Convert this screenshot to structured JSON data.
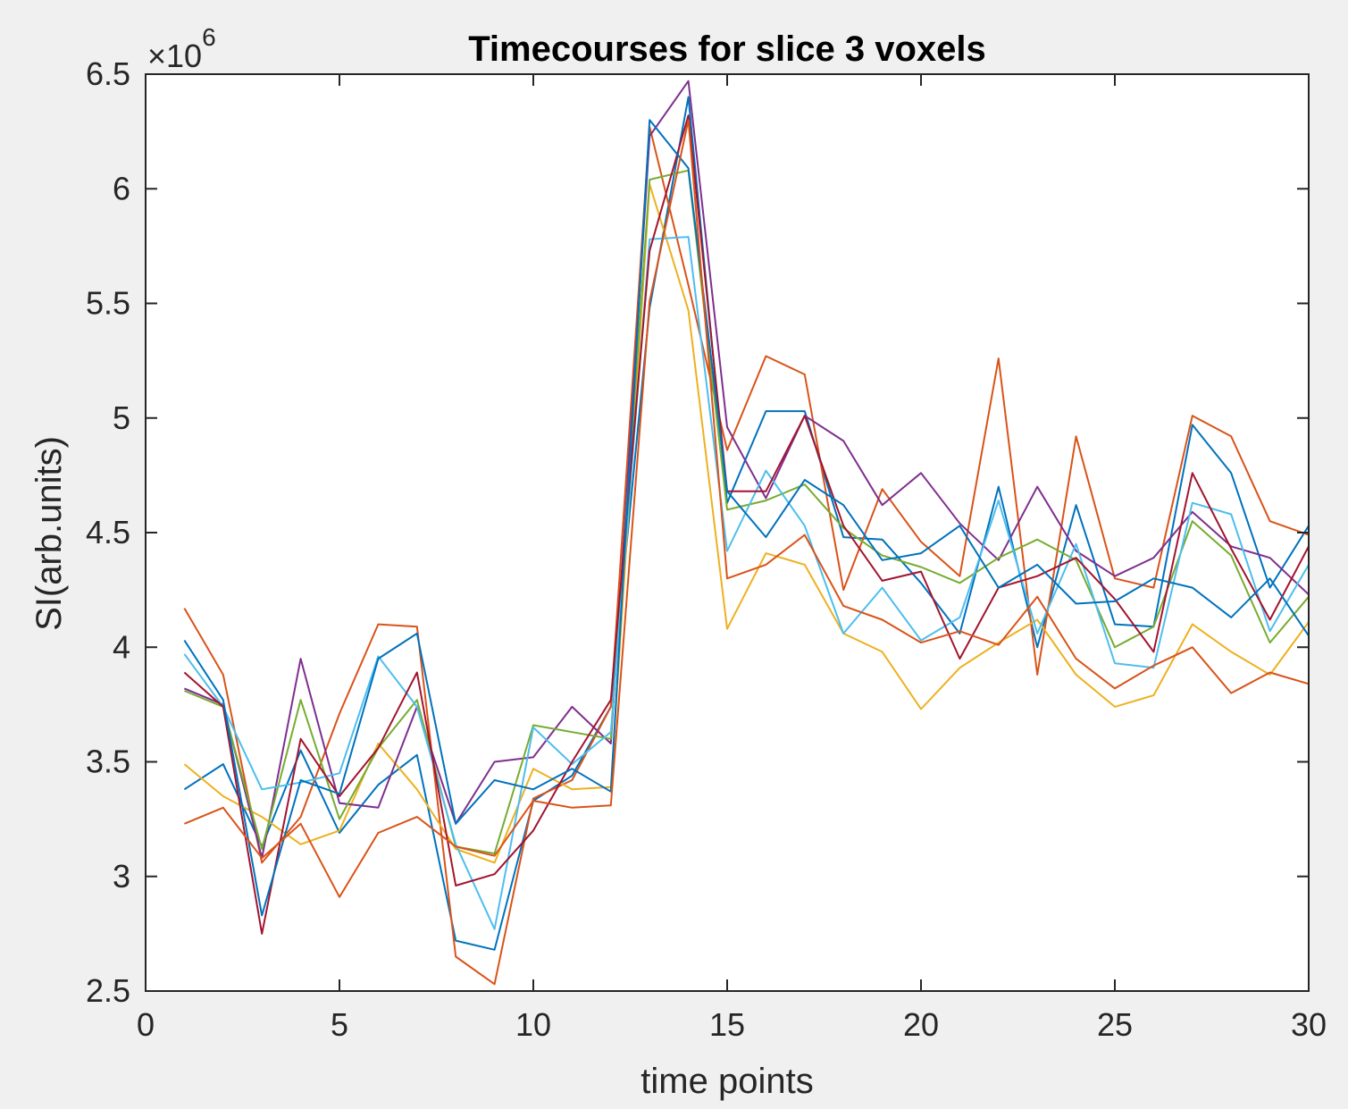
{
  "chart_data": {
    "type": "line",
    "title": "Timecourses for slice 3 voxels",
    "xlabel": "time points",
    "ylabel": "SI(arb.units)",
    "y_exponent_label": "×10",
    "y_exponent_power": "6",
    "xlim": [
      0,
      30
    ],
    "ylim": [
      2.5,
      6.5
    ],
    "xticks": [
      0,
      5,
      10,
      15,
      20,
      25,
      30
    ],
    "yticks": [
      2.5,
      3,
      3.5,
      4,
      4.5,
      5,
      5.5,
      6,
      6.5
    ],
    "grid": false,
    "x": [
      1,
      2,
      3,
      4,
      5,
      6,
      7,
      8,
      9,
      10,
      11,
      12,
      13,
      14,
      15,
      16,
      17,
      18,
      19,
      20,
      21,
      22,
      23,
      24,
      25,
      26,
      27,
      28,
      29,
      30
    ],
    "series": [
      {
        "color": "#0072BD",
        "values": [
          3.38,
          3.49,
          3.13,
          3.55,
          3.19,
          3.4,
          3.53,
          2.72,
          2.68,
          3.33,
          3.44,
          3.74,
          5.48,
          6.4,
          4.63,
          5.03,
          5.03,
          4.48,
          4.47,
          4.28,
          4.06,
          4.7,
          4.0,
          4.62,
          4.1,
          4.09,
          4.97,
          4.76,
          4.26,
          4.53
        ]
      },
      {
        "color": "#D95319",
        "values": [
          4.17,
          3.88,
          3.06,
          3.26,
          3.71,
          4.1,
          4.09,
          2.65,
          2.53,
          3.34,
          3.42,
          3.74,
          6.27,
          5.58,
          4.86,
          5.27,
          5.19,
          4.25,
          4.69,
          4.46,
          4.31,
          5.26,
          3.88,
          4.92,
          4.3,
          4.26,
          5.01,
          4.92,
          4.55,
          4.49
        ]
      },
      {
        "color": "#EDB120",
        "values": [
          3.49,
          3.35,
          3.26,
          3.14,
          3.2,
          3.58,
          3.38,
          3.12,
          3.06,
          3.47,
          3.38,
          3.39,
          6.02,
          5.47,
          4.08,
          4.41,
          4.36,
          4.06,
          3.98,
          3.73,
          3.91,
          4.02,
          4.12,
          3.88,
          3.74,
          3.79,
          4.1,
          3.98,
          3.88,
          4.11
        ]
      },
      {
        "color": "#7E2F8E",
        "values": [
          3.82,
          3.75,
          3.08,
          3.95,
          3.32,
          3.3,
          3.74,
          3.23,
          3.5,
          3.52,
          3.74,
          3.58,
          6.23,
          6.47,
          4.96,
          4.65,
          5.01,
          4.9,
          4.62,
          4.76,
          4.54,
          4.38,
          4.7,
          4.42,
          4.31,
          4.39,
          4.59,
          4.44,
          4.39,
          4.23
        ]
      },
      {
        "color": "#77AC30",
        "values": [
          3.81,
          3.74,
          3.12,
          3.77,
          3.25,
          3.56,
          3.77,
          3.13,
          3.1,
          3.66,
          3.63,
          3.6,
          6.04,
          6.08,
          4.6,
          4.64,
          4.71,
          4.52,
          4.4,
          4.35,
          4.28,
          4.39,
          4.47,
          4.38,
          4.0,
          4.09,
          4.55,
          4.4,
          4.02,
          4.22
        ]
      },
      {
        "color": "#4DBEEE",
        "values": [
          3.97,
          3.74,
          3.38,
          3.41,
          3.45,
          3.96,
          3.74,
          3.14,
          2.77,
          3.65,
          3.49,
          3.63,
          5.78,
          5.79,
          4.42,
          4.77,
          4.53,
          4.06,
          4.26,
          4.03,
          4.13,
          4.64,
          4.06,
          4.45,
          3.93,
          3.91,
          4.63,
          4.58,
          4.07,
          4.36
        ]
      },
      {
        "color": "#A2142F",
        "values": [
          3.89,
          3.74,
          2.75,
          3.6,
          3.35,
          3.56,
          3.89,
          2.96,
          3.01,
          3.2,
          3.5,
          3.77,
          5.73,
          6.32,
          4.68,
          4.68,
          5.01,
          4.53,
          4.29,
          4.33,
          3.95,
          4.26,
          4.31,
          4.39,
          4.21,
          3.98,
          4.76,
          4.43,
          4.12,
          4.44
        ]
      },
      {
        "color": "#0072BD",
        "values": [
          4.03,
          3.77,
          2.83,
          3.42,
          3.36,
          3.95,
          4.06,
          3.23,
          3.42,
          3.38,
          3.47,
          3.37,
          6.3,
          6.09,
          4.68,
          4.48,
          4.73,
          4.62,
          4.38,
          4.41,
          4.53,
          4.26,
          4.36,
          4.19,
          4.2,
          4.3,
          4.26,
          4.13,
          4.3,
          4.05
        ]
      },
      {
        "color": "#D95319",
        "values": [
          3.23,
          3.3,
          3.08,
          3.23,
          2.91,
          3.19,
          3.26,
          3.13,
          3.09,
          3.33,
          3.3,
          3.31,
          5.51,
          6.3,
          4.3,
          4.36,
          4.49,
          4.18,
          4.12,
          4.02,
          4.07,
          4.01,
          4.22,
          3.95,
          3.82,
          3.92,
          4.0,
          3.8,
          3.89,
          3.84
        ]
      }
    ]
  }
}
